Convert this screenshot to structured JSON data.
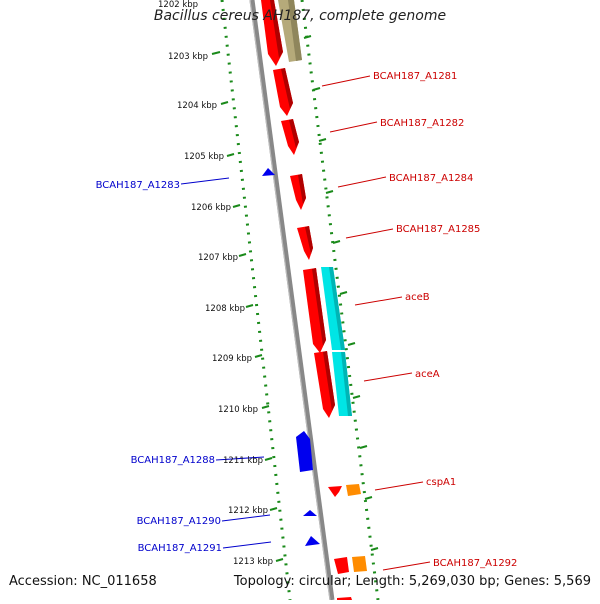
{
  "title": "Bacillus cereus AH187, complete genome",
  "footer": {
    "accession": "Accession: NC_011658",
    "summary": "Topology: circular; Length: 5,269,030 bp; Genes: 5,569"
  },
  "ruler": {
    "top_partial_label": "1202 kbp",
    "kbp_labels": [
      "1203 kbp",
      "1204 kbp",
      "1205 kbp",
      "1206 kbp",
      "1207 kbp",
      "1208 kbp",
      "1209 kbp",
      "1210 kbp",
      "1211 kbp",
      "1212 kbp",
      "1213 kbp"
    ]
  },
  "gene_labels": {
    "right": [
      "BCAH187_A1281",
      "BCAH187_A1282",
      "BCAH187_A1284",
      "BCAH187_A1285",
      "aceB",
      "aceA",
      "cspA1",
      "BCAH187_A1292"
    ],
    "left": [
      "BCAH187_A1283",
      "BCAH187_A1288",
      "BCAH187_A1290",
      "BCAH187_A1291"
    ]
  },
  "colors": {
    "forward_gene": "#ff0000",
    "reverse_gene": "#0000ee",
    "cog_cyan": "#00e5e5",
    "cog_olive": "#b5aa7a",
    "cog_orange": "#ff8c00",
    "backbone": "#888888",
    "tick_green": "#1a8a1a",
    "label_red": "#cc0000",
    "label_blue": "#0000cc"
  }
}
